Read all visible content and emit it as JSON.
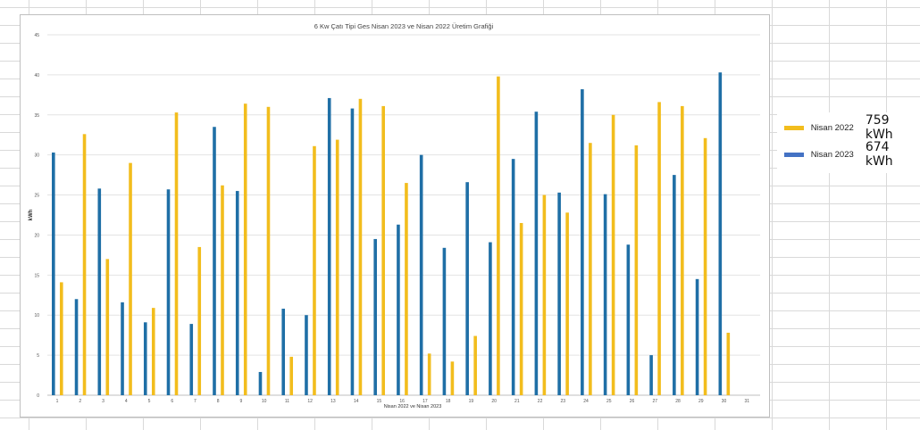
{
  "chart_data": {
    "type": "bar",
    "title": "6 Kw Çatı Tipi Ges Nisan 2023 ve Nisan 2022 Üretim Grafiği",
    "xlabel": "Nisan 2022 ve Nisan 2023",
    "ylabel": "kWh",
    "ylim": [
      0,
      45
    ],
    "yticks": [
      0,
      5,
      10,
      15,
      20,
      25,
      30,
      35,
      40,
      45
    ],
    "grid": true,
    "categories": [
      "1",
      "2",
      "3",
      "4",
      "5",
      "6",
      "7",
      "8",
      "9",
      "10",
      "11",
      "12",
      "13",
      "14",
      "15",
      "16",
      "17",
      "18",
      "19",
      "20",
      "21",
      "22",
      "23",
      "24",
      "25",
      "26",
      "27",
      "28",
      "29",
      "30",
      "31"
    ],
    "series": [
      {
        "name": "Nisan 2023",
        "color": "#1f6fa6",
        "values": [
          30.3,
          12.0,
          25.8,
          11.6,
          9.1,
          25.7,
          8.9,
          33.5,
          25.5,
          2.9,
          10.8,
          10.0,
          37.1,
          35.8,
          19.5,
          21.3,
          30.0,
          18.4,
          26.6,
          19.1,
          29.5,
          35.4,
          25.3,
          38.2,
          25.1,
          18.8,
          5.0,
          27.5,
          14.5,
          40.3,
          null
        ]
      },
      {
        "name": "Nisan 2022",
        "color": "#f2bd1d",
        "values": [
          14.1,
          32.6,
          17.0,
          29.0,
          10.9,
          35.3,
          18.5,
          26.2,
          36.4,
          36.0,
          4.8,
          31.1,
          31.9,
          37.0,
          36.1,
          26.5,
          5.2,
          4.2,
          7.4,
          39.8,
          21.5,
          25.0,
          22.8,
          31.5,
          35.0,
          31.2,
          36.6,
          36.1,
          32.1,
          7.8,
          null
        ]
      }
    ]
  },
  "legend": {
    "items": [
      {
        "name": "Nisan 2022",
        "color": "#f2bd1d",
        "total": "759 kWh"
      },
      {
        "name": "Nisan 2023",
        "color": "#4472c4",
        "total": "674 kWh"
      }
    ]
  }
}
